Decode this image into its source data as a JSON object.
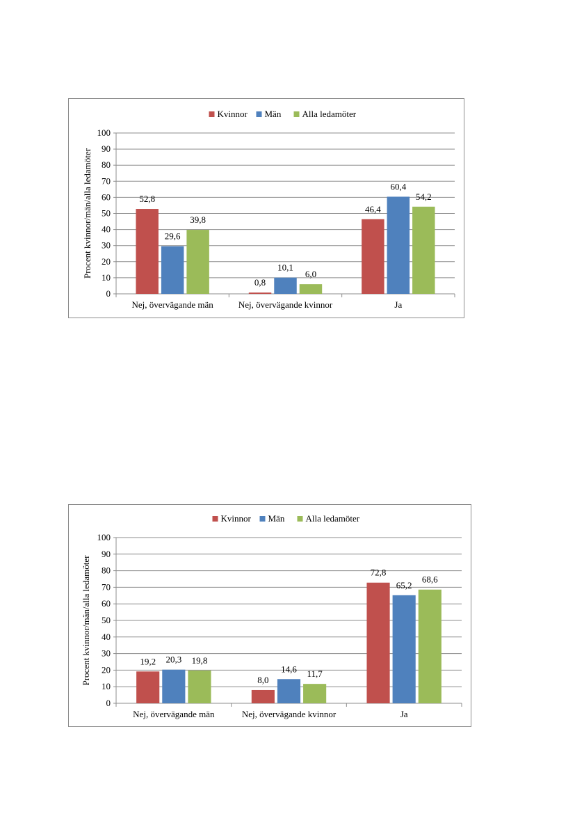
{
  "chart_data": [
    {
      "type": "bar",
      "categories": [
        "Nej, övervägande män",
        "Nej, övervägande kvinnor",
        "Ja"
      ],
      "series": [
        {
          "name": "Kvinnor",
          "values": [
            52.8,
            0.8,
            46.4
          ],
          "color": "#c0504d"
        },
        {
          "name": "Män",
          "values": [
            29.6,
            10.1,
            60.4
          ],
          "color": "#4f81bd"
        },
        {
          "name": "Alla ledamöter",
          "values": [
            39.8,
            6.0,
            54.2
          ],
          "color": "#9bbb59"
        }
      ],
      "data_labels": [
        [
          "52,8",
          "0,8",
          "46,4"
        ],
        [
          "29,6",
          "10,1",
          "60,4"
        ],
        [
          "39,8",
          "6,0",
          "54,2"
        ]
      ],
      "yticks": [
        "0",
        "10",
        "20",
        "30",
        "40",
        "50",
        "60",
        "70",
        "80",
        "90",
        "100"
      ],
      "ylabel": "Procent kvinnor/män/alla ledamöter",
      "ylim": [
        0,
        100
      ],
      "grid": true,
      "legend": "top"
    },
    {
      "type": "bar",
      "categories": [
        "Nej, övervägande män",
        "Nej, övervägande kvinnor",
        "Ja"
      ],
      "series": [
        {
          "name": "Kvinnor",
          "values": [
            19.2,
            8.0,
            72.8
          ],
          "color": "#c0504d"
        },
        {
          "name": "Män",
          "values": [
            20.3,
            14.6,
            65.2
          ],
          "color": "#4f81bd"
        },
        {
          "name": "Alla ledamöter",
          "values": [
            19.8,
            11.7,
            68.6
          ],
          "color": "#9bbb59"
        }
      ],
      "data_labels": [
        [
          "19,2",
          "8,0",
          "72,8"
        ],
        [
          "20,3",
          "14,6",
          "65,2"
        ],
        [
          "19,8",
          "11,7",
          "68,6"
        ]
      ],
      "yticks": [
        "0",
        "10",
        "20",
        "30",
        "40",
        "50",
        "60",
        "70",
        "80",
        "90",
        "100"
      ],
      "ylabel": "Procent kvinnor/män/alla ledamöter",
      "ylim": [
        0,
        100
      ],
      "grid": true,
      "legend": "top"
    }
  ]
}
